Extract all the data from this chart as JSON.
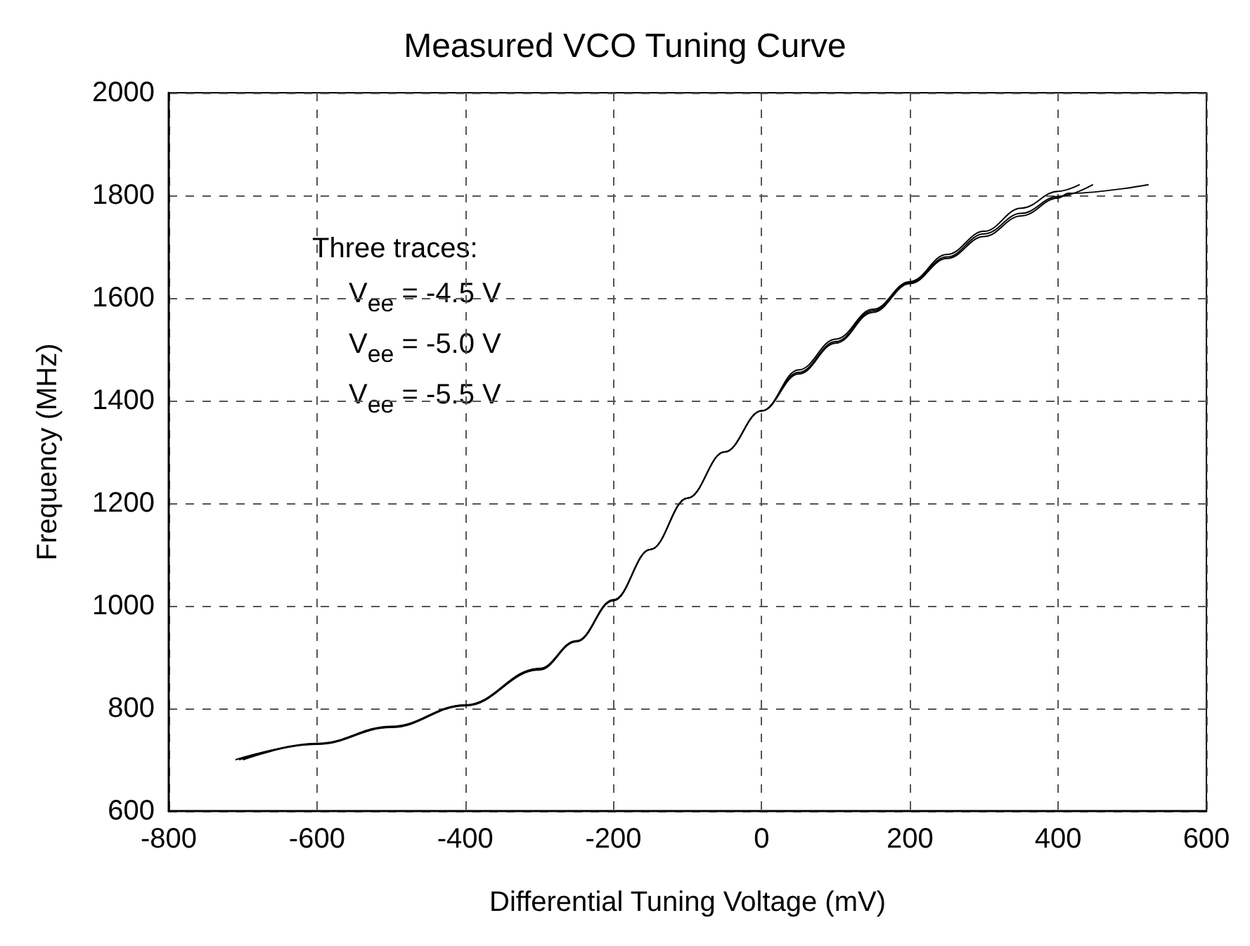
{
  "chart_data": {
    "type": "line",
    "title": "Measured VCO Tuning Curve",
    "xlabel": "Differential Tuning Voltage (mV)",
    "ylabel": "Frequency (MHz)",
    "annotations": [
      "Three traces:",
      "V$_{ee}$ = -4.5 V",
      "V$_{ee}$ = -5.0 V",
      "V$_{ee}$ = -5.5 V"
    ],
    "series": [
      {
        "color": "#000000",
        "x": [
          -710,
          -600,
          -500,
          -400,
          -300,
          -250,
          -200,
          -150,
          -100,
          -50,
          0,
          50,
          100,
          150,
          200,
          250,
          300,
          350,
          400,
          429
        ],
        "values": [
          700,
          730,
          763,
          805,
          875,
          930,
          1010,
          1110,
          1210,
          1300,
          1380,
          1460,
          1520,
          1578,
          1632,
          1685,
          1730,
          1775,
          1808,
          1821
        ]
      },
      {
        "color": "#000000",
        "x": [
          -705,
          -600,
          -500,
          -400,
          -300,
          -250,
          -200,
          -150,
          -100,
          -50,
          0,
          50,
          100,
          150,
          200,
          250,
          300,
          350,
          400,
          447
        ],
        "values": [
          700,
          732,
          765,
          807,
          878,
          932,
          1012,
          1110,
          1210,
          1300,
          1380,
          1455,
          1515,
          1575,
          1630,
          1680,
          1725,
          1765,
          1798,
          1821
        ]
      },
      {
        "color": "#000000",
        "x": [
          -700,
          -600,
          -500,
          -400,
          -300,
          -250,
          -200,
          -150,
          -100,
          -50,
          0,
          50,
          100,
          150,
          200,
          250,
          300,
          350,
          400,
          414,
          522
        ],
        "values": [
          700,
          731,
          764,
          806,
          876,
          931,
          1011,
          1110,
          1210,
          1300,
          1380,
          1452,
          1512,
          1572,
          1628,
          1677,
          1720,
          1760,
          1795,
          1804,
          1821
        ]
      }
    ],
    "xlim": [
      -800,
      600
    ],
    "xticks": [
      -800,
      -600,
      -400,
      -200,
      0,
      200,
      400,
      600
    ],
    "ylim": [
      600,
      2000
    ],
    "yticks": [
      600,
      800,
      1000,
      1200,
      1400,
      1600,
      1800,
      2000
    ],
    "grid": true,
    "marker": "none",
    "line_style": "solid"
  }
}
